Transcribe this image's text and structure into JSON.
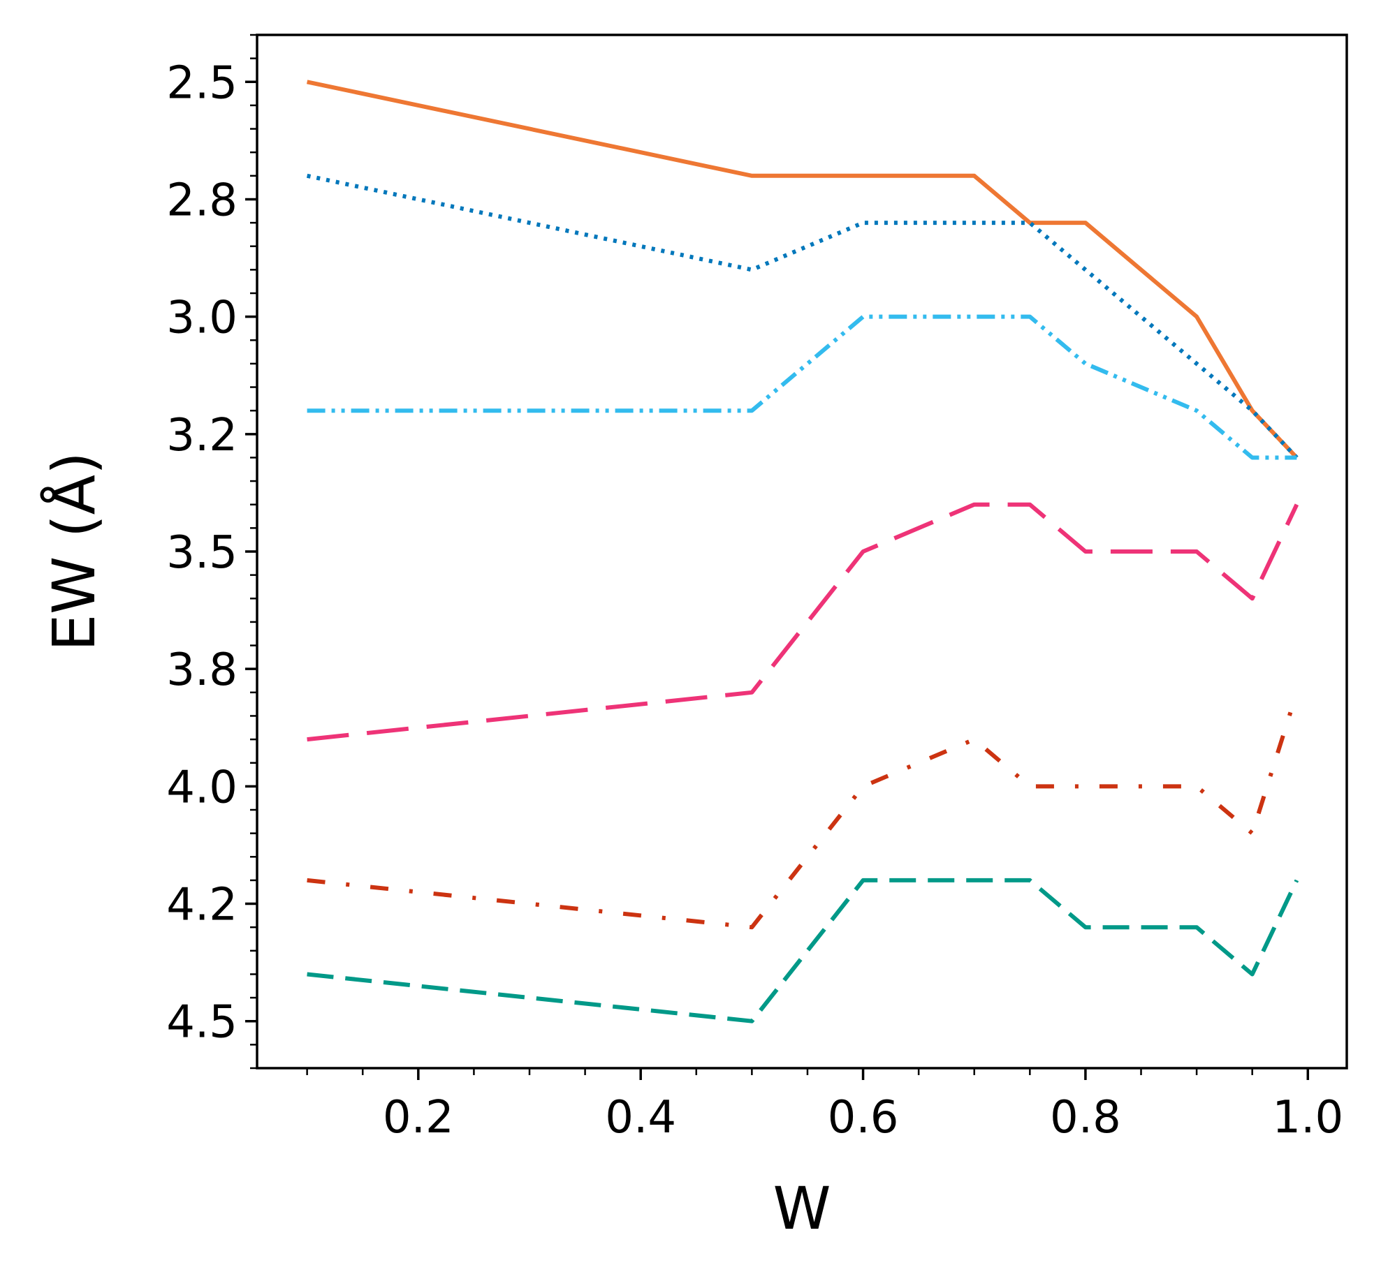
{
  "chart_data": {
    "type": "line",
    "title": "",
    "xlabel": "W",
    "ylabel": "EW (Å)",
    "xlim": [
      0.055,
      1.035
    ],
    "ylim": [
      4.6,
      2.4
    ],
    "y_inverted": true,
    "grid": false,
    "legend": "none",
    "x_ticks": [
      0.2,
      0.4,
      0.6,
      0.8,
      1.0
    ],
    "x_tick_labels": [
      "0.2",
      "0.4",
      "0.6",
      "0.8",
      "1.0"
    ],
    "y_ticks": [
      2.5,
      2.75,
      3.0,
      3.25,
      3.5,
      3.75,
      4.0,
      4.25,
      4.5
    ],
    "y_tick_labels": [
      "2.5",
      "2.8",
      "3.0",
      "3.2",
      "3.5",
      "3.8",
      "4.0",
      "4.2",
      "4.5"
    ],
    "x_minor_step": 0.05,
    "y_minor_step": 0.05,
    "series": [
      {
        "style": "solid",
        "color": "#ee7733",
        "x": [
          0.1,
          0.5,
          0.6,
          0.7,
          0.75,
          0.8,
          0.9,
          0.95,
          0.99
        ],
        "y": [
          2.5,
          2.7,
          2.7,
          2.7,
          2.8,
          2.8,
          3.0,
          3.2,
          3.3
        ]
      },
      {
        "style": "dotted",
        "color": "#0077bb",
        "x": [
          0.1,
          0.5,
          0.6,
          0.7,
          0.75,
          0.8,
          0.9,
          0.95,
          0.99
        ],
        "y": [
          2.7,
          2.9,
          2.8,
          2.8,
          2.8,
          2.9,
          3.1,
          3.2,
          3.3
        ]
      },
      {
        "style": "dashdotdot",
        "color": "#33bbee",
        "x": [
          0.1,
          0.5,
          0.6,
          0.7,
          0.75,
          0.8,
          0.9,
          0.95,
          0.99
        ],
        "y": [
          3.2,
          3.2,
          3.0,
          3.0,
          3.0,
          3.1,
          3.2,
          3.3,
          3.3
        ]
      },
      {
        "style": "longdash",
        "color": "#ee3377",
        "x": [
          0.1,
          0.5,
          0.6,
          0.7,
          0.75,
          0.8,
          0.9,
          0.95,
          0.99
        ],
        "y": [
          3.9,
          3.8,
          3.5,
          3.4,
          3.4,
          3.5,
          3.5,
          3.6,
          3.4
        ]
      },
      {
        "style": "dashdot",
        "color": "#cc3311",
        "x": [
          0.1,
          0.5,
          0.6,
          0.7,
          0.75,
          0.8,
          0.9,
          0.95,
          0.99
        ],
        "y": [
          4.2,
          4.3,
          4.0,
          3.9,
          4.0,
          4.0,
          4.0,
          4.1,
          3.8
        ]
      },
      {
        "style": "dashed",
        "color": "#009988",
        "x": [
          0.1,
          0.5,
          0.6,
          0.7,
          0.75,
          0.8,
          0.9,
          0.95,
          0.99
        ],
        "y": [
          4.4,
          4.5,
          4.2,
          4.2,
          4.2,
          4.3,
          4.3,
          4.4,
          4.2
        ]
      }
    ]
  }
}
